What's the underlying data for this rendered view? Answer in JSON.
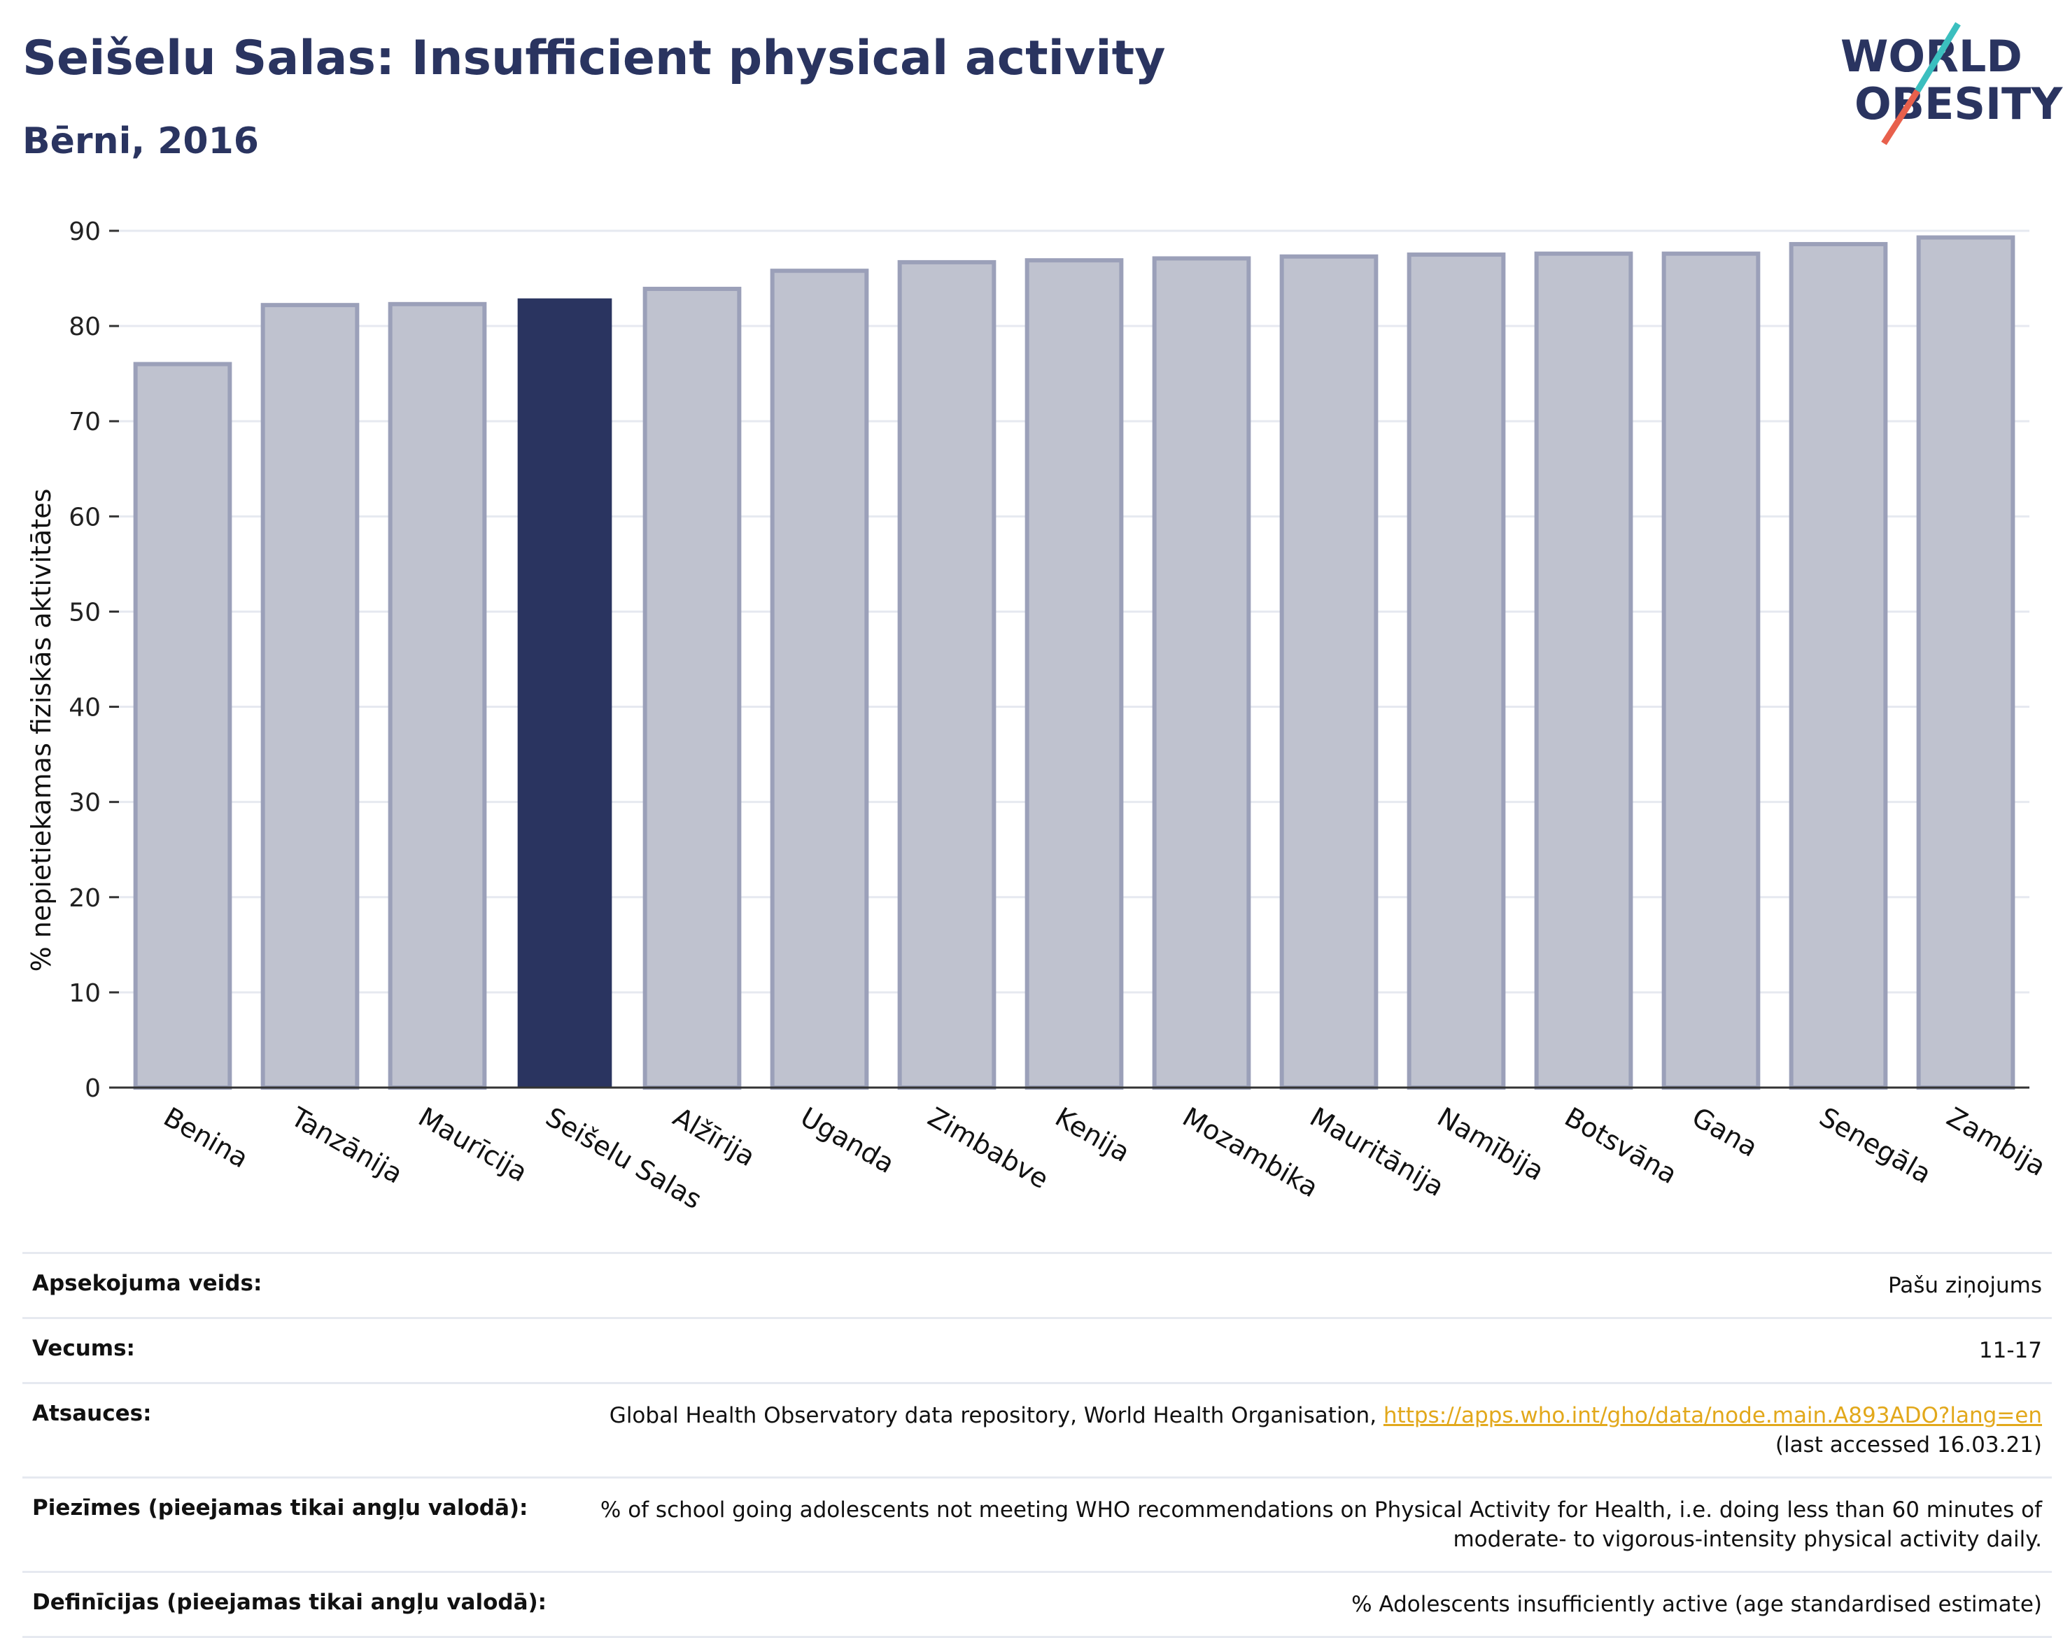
{
  "header": {
    "title": "Seišelu Salas: Insufficient physical activity",
    "subtitle": "Bērni, 2016"
  },
  "logo": {
    "line1": "WORLD",
    "line2": "OBESITY",
    "colors": {
      "text": "#2a3460",
      "slash_teal": "#3bbfbf",
      "slash_red": "#e8604c"
    }
  },
  "chart_data": {
    "type": "bar",
    "title": "",
    "xlabel": "",
    "ylabel": "% nepietiekamas fiziskās aktivitātes",
    "ylim": [
      0,
      90
    ],
    "yticks": [
      0,
      10,
      20,
      30,
      40,
      50,
      60,
      70,
      80,
      90
    ],
    "grid": true,
    "categories": [
      "Benina",
      "Tanzānija",
      "Maurīcija",
      "Seišelu Salas",
      "Alžīrija",
      "Uganda",
      "Zimbabve",
      "Kenija",
      "Mozambika",
      "Mauritānija",
      "Namībija",
      "Botsvāna",
      "Gana",
      "Senegāla",
      "Zambija"
    ],
    "values": [
      76.0,
      82.2,
      82.3,
      82.9,
      83.9,
      85.8,
      86.7,
      86.9,
      87.1,
      87.3,
      87.5,
      87.6,
      87.6,
      88.6,
      89.3
    ],
    "highlight": "Seišelu Salas",
    "colors": {
      "bar": "#bfc2cf",
      "bar_edge": "#9ba0b9",
      "highlight": "#2a3460",
      "grid": "#e6e9f0",
      "axis": "#333333"
    }
  },
  "info": [
    {
      "label": "Apsekojuma veids:",
      "value": "Pašu ziņojums"
    },
    {
      "label": "Vecums:",
      "value": "11-17"
    },
    {
      "label": "Atsauces:",
      "value": "Global Health Observatory data repository, World Health Organisation,",
      "link": "https://apps.who.int/gho/data/node.main.A893ADO?lang=en",
      "value2": "(last accessed 16.03.21)"
    },
    {
      "label": "Piezīmes (pieejamas tikai angļu valodā):",
      "value": "% of school going adolescents not meeting WHO recommendations on Physical Activity for Health, i.e. doing less than 60 minutes of",
      "value2": "moderate- to vigorous-intensity physical activity daily."
    },
    {
      "label": "Definīcijas (pieejamas tikai angļu valodā):",
      "value": "% Adolescents insufficiently active (age standardised estimate)"
    }
  ]
}
